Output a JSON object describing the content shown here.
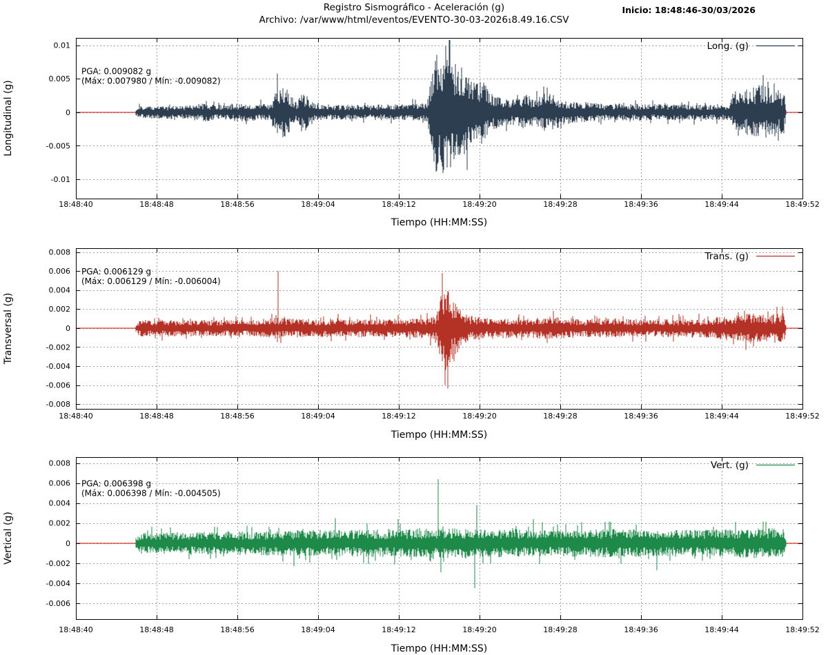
{
  "header": {
    "title": "Registro Sismográfico - Aceleración (g)",
    "subtitle": "Archivo: /var/www/html/eventos/EVENTO-30-03-2026₁8.49.16.CSV",
    "start_label": "Inicio: 18:48:46-30/03/2026"
  },
  "colors": {
    "zero_line": "#dd0000",
    "grid": "#a0a0a0",
    "axis": "#000000",
    "background": "#ffffff"
  },
  "chart_data": {
    "type": "line",
    "description": "Three stacked seismogram acceleration traces (g) vs time; waveform rendered from amplitude envelopes and discrete peak spikes estimated from the plot",
    "xlabel": "Tiempo (HH:MM:SS)",
    "x_range_seconds": [
      0,
      72
    ],
    "signal_start_s": 5.9,
    "signal_end_s": 70.4,
    "grid": "dotted",
    "legend_position": "top-right-inside",
    "xticks": [
      {
        "t": 0,
        "label": "18:48:40"
      },
      {
        "t": 8,
        "label": "18:48:48"
      },
      {
        "t": 16,
        "label": "18:48:56"
      },
      {
        "t": 24,
        "label": "18:49:04"
      },
      {
        "t": 32,
        "label": "18:49:12"
      },
      {
        "t": 40,
        "label": "18:49:20"
      },
      {
        "t": 48,
        "label": "18:49:28"
      },
      {
        "t": 56,
        "label": "18:49:36"
      },
      {
        "t": 64,
        "label": "18:49:44"
      },
      {
        "t": 72,
        "label": "18:49:52"
      }
    ],
    "charts": [
      {
        "id": "longitudinal",
        "ylabel": "Longitudinal (g)",
        "legend_label": "Long. (g)",
        "trace_color": "#2c3e50",
        "annotation": {
          "line1": "PGA: 0.009082 g",
          "line2": "(Máx: 0.007980 / Mín: -0.009082)",
          "color": "#2222cc",
          "anchor_value": 0.0062
        },
        "pga_g": 0.009082,
        "max_g": 0.00798,
        "min_g": -0.009082,
        "ylim": [
          -0.0129,
          0.0111
        ],
        "yticks": [
          {
            "v": 0.01,
            "label": "0.01"
          },
          {
            "v": 0.005,
            "label": "0.005"
          },
          {
            "v": 0,
            "label": "0"
          },
          {
            "v": -0.005,
            "label": "-0.005"
          },
          {
            "v": -0.01,
            "label": "-0.01"
          }
        ],
        "envelope": [
          [
            5.9,
            0.0004
          ],
          [
            6.3,
            0.0009
          ],
          [
            11,
            0.0009
          ],
          [
            12.5,
            0.0013
          ],
          [
            14,
            0.001
          ],
          [
            16.5,
            0.0013
          ],
          [
            18,
            0.0011
          ],
          [
            19.4,
            0.0011
          ],
          [
            19.9,
            0.0034
          ],
          [
            20.5,
            0.0038
          ],
          [
            21.3,
            0.0025
          ],
          [
            21.9,
            0.0013
          ],
          [
            22.4,
            0.0027
          ],
          [
            23.1,
            0.002
          ],
          [
            23.8,
            0.0011
          ],
          [
            28,
            0.001
          ],
          [
            32,
            0.0011
          ],
          [
            34.8,
            0.0013
          ],
          [
            35.2,
            0.0045
          ],
          [
            35.6,
            0.008
          ],
          [
            36.4,
            0.0088
          ],
          [
            37.4,
            0.0078
          ],
          [
            38.4,
            0.006
          ],
          [
            39.2,
            0.0042
          ],
          [
            40.0,
            0.0045
          ],
          [
            40.8,
            0.0032
          ],
          [
            41.8,
            0.0021
          ],
          [
            43.2,
            0.0017
          ],
          [
            44.6,
            0.0024
          ],
          [
            45.6,
            0.0018
          ],
          [
            46.6,
            0.0027
          ],
          [
            47.8,
            0.0022
          ],
          [
            49,
            0.0015
          ],
          [
            52,
            0.0012
          ],
          [
            58,
            0.0011
          ],
          [
            64.6,
            0.0011
          ],
          [
            65.4,
            0.0026
          ],
          [
            66.6,
            0.0032
          ],
          [
            67.8,
            0.0038
          ],
          [
            68.8,
            0.0033
          ],
          [
            70.2,
            0.0029
          ],
          [
            70.4,
            0
          ]
        ],
        "spikes": [
          [
            35.9,
            -0.0075
          ],
          [
            36.4,
            -0.0091
          ],
          [
            36.8,
            0.0078
          ],
          [
            37.1,
            -0.0082
          ],
          [
            37.6,
            0.0072
          ],
          [
            40.2,
            -0.0047
          ],
          [
            40.4,
            0.0044
          ]
        ]
      },
      {
        "id": "transversal",
        "ylabel": "Transversal (g)",
        "legend_label": "Trans. (g)",
        "trace_color": "#b43126",
        "annotation": {
          "line1": "PGA: 0.006129 g",
          "line2": "(Máx: 0.006129 / Mín: -0.006004)",
          "color": "#d42a20",
          "anchor_value": 0.006
        },
        "pga_g": 0.006129,
        "max_g": 0.006129,
        "min_g": -0.006004,
        "ylim": [
          -0.0085,
          0.0084
        ],
        "yticks": [
          {
            "v": 0.008,
            "label": "0.008"
          },
          {
            "v": 0.006,
            "label": "0.006"
          },
          {
            "v": 0.004,
            "label": "0.004"
          },
          {
            "v": 0.002,
            "label": "0.002"
          },
          {
            "v": 0,
            "label": "0"
          },
          {
            "v": -0.002,
            "label": "-0.002"
          },
          {
            "v": -0.004,
            "label": "-0.004"
          },
          {
            "v": -0.006,
            "label": "-0.006"
          },
          {
            "v": -0.008,
            "label": "-0.008"
          }
        ],
        "envelope": [
          [
            5.9,
            0.0003
          ],
          [
            6.3,
            0.0008
          ],
          [
            18,
            0.0008
          ],
          [
            19.6,
            0.001
          ],
          [
            21.5,
            0.0009
          ],
          [
            27,
            0.00085
          ],
          [
            33,
            0.0009
          ],
          [
            35.6,
            0.0011
          ],
          [
            36.1,
            0.003
          ],
          [
            36.7,
            0.004
          ],
          [
            37.4,
            0.003
          ],
          [
            38.2,
            0.0018
          ],
          [
            39.2,
            0.0013
          ],
          [
            41,
            0.001
          ],
          [
            45,
            0.00095
          ],
          [
            47,
            0.0011
          ],
          [
            50,
            0.0009
          ],
          [
            57,
            0.00085
          ],
          [
            62,
            0.0009
          ],
          [
            64.5,
            0.0012
          ],
          [
            66.5,
            0.0014
          ],
          [
            68.5,
            0.0013
          ],
          [
            70.2,
            0.0014
          ],
          [
            70.4,
            0
          ]
        ],
        "spikes": [
          [
            20.0,
            0.006
          ],
          [
            36.3,
            0.0058
          ],
          [
            36.55,
            -0.006
          ],
          [
            36.9,
            0.0038
          ],
          [
            37.5,
            -0.0035
          ],
          [
            66.4,
            -0.0023
          ]
        ]
      },
      {
        "id": "vertical",
        "ylabel": "Vertical (g)",
        "legend_label": "Vert. (g)",
        "trace_color": "#1e8a4a",
        "annotation": {
          "line1": "PGA: 0.006398 g",
          "line2": "(Máx: 0.006398 / Mín: -0.004505)",
          "color": "#1e7d3c",
          "anchor_value": 0.006
        },
        "pga_g": 0.006398,
        "max_g": 0.006398,
        "min_g": -0.004505,
        "ylim": [
          -0.0076,
          0.0086
        ],
        "yticks": [
          {
            "v": 0.008,
            "label": "0.008"
          },
          {
            "v": 0.006,
            "label": "0.006"
          },
          {
            "v": 0.004,
            "label": "0.004"
          },
          {
            "v": 0.002,
            "label": "0.002"
          },
          {
            "v": 0,
            "label": "0"
          },
          {
            "v": -0.002,
            "label": "-0.002"
          },
          {
            "v": -0.004,
            "label": "-0.004"
          },
          {
            "v": -0.006,
            "label": "-0.006"
          }
        ],
        "envelope": [
          [
            5.9,
            0.0004
          ],
          [
            6.3,
            0.00095
          ],
          [
            12,
            0.001
          ],
          [
            18,
            0.0011
          ],
          [
            24,
            0.0012
          ],
          [
            30,
            0.00125
          ],
          [
            34,
            0.0013
          ],
          [
            36.5,
            0.0014
          ],
          [
            40,
            0.0013
          ],
          [
            44,
            0.00125
          ],
          [
            48,
            0.0012
          ],
          [
            52,
            0.0013
          ],
          [
            56,
            0.00125
          ],
          [
            60,
            0.0012
          ],
          [
            64,
            0.00125
          ],
          [
            67,
            0.0014
          ],
          [
            70.2,
            0.0013
          ],
          [
            70.4,
            0
          ]
        ],
        "spikes": [
          [
            35.9,
            0.0064
          ],
          [
            36.15,
            -0.0029
          ],
          [
            39.5,
            -0.0045
          ],
          [
            39.75,
            0.0038
          ],
          [
            21.6,
            -0.0023
          ],
          [
            25.7,
            0.0025
          ],
          [
            31.9,
            0.0024
          ],
          [
            45.3,
            0.0024
          ],
          [
            57.6,
            -0.0027
          ]
        ]
      }
    ]
  }
}
